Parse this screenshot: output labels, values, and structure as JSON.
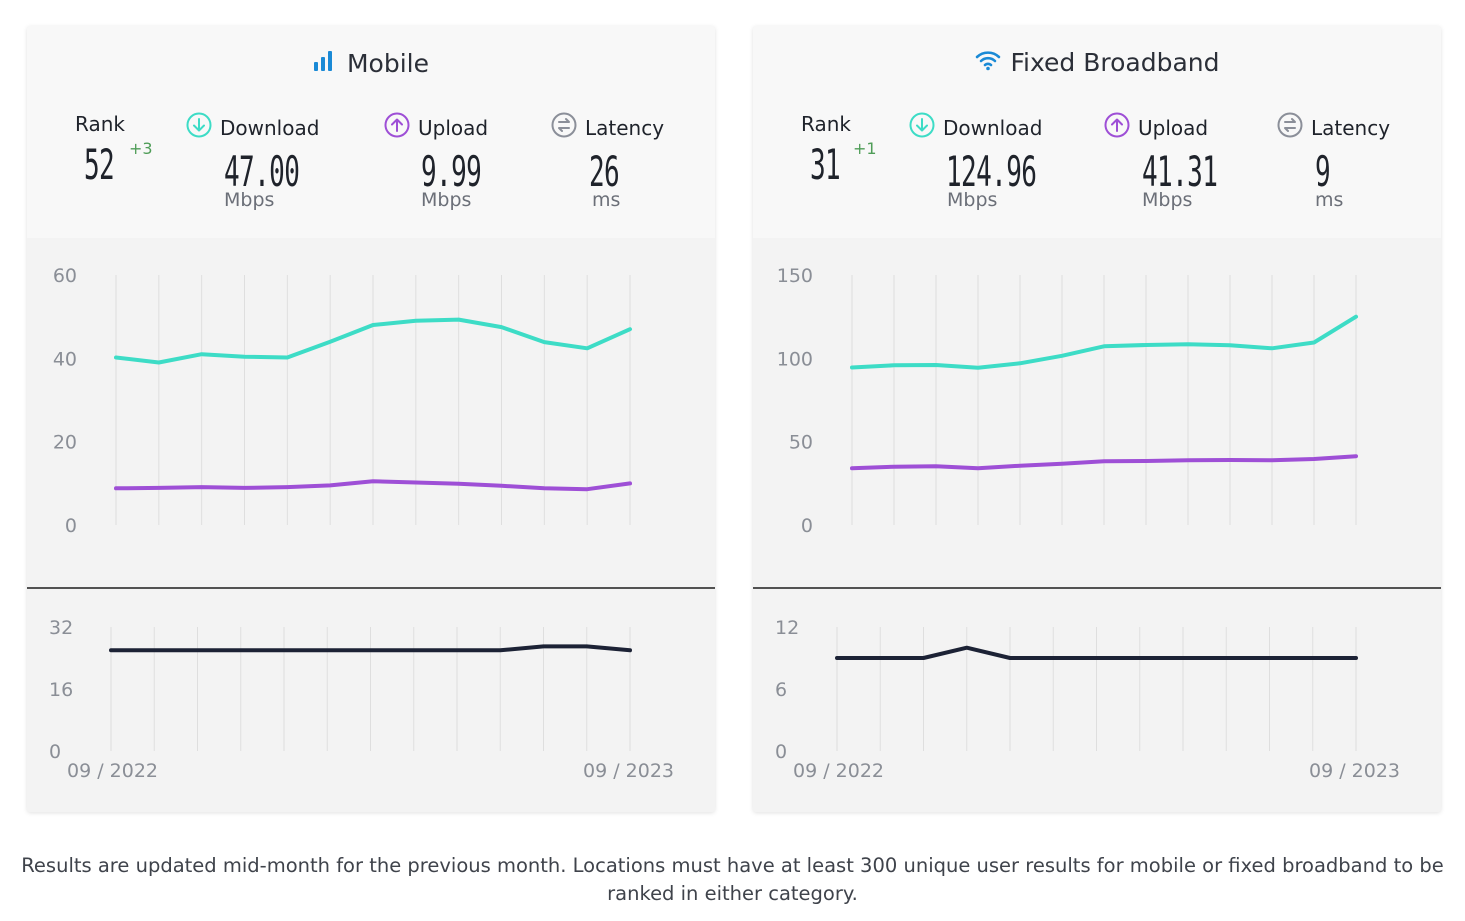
{
  "colors": {
    "download": "#3ddcc6",
    "upload": "#9e4fd6",
    "latency_icon": "#8b8f99",
    "latency_line": "#1c2235",
    "grid": "#dedede",
    "axis_text": "#8a8e96",
    "brand_blue": "#1a8ad6"
  },
  "cards": [
    {
      "title": "Mobile",
      "title_icon": "signal-bars-icon",
      "rank_label": "Rank",
      "rank": "52",
      "rank_change": "+3",
      "download_label": "Download",
      "download": "47.00",
      "download_unit": "Mbps",
      "upload_label": "Upload",
      "upload": "9.99",
      "upload_unit": "Mbps",
      "latency_label": "Latency",
      "latency": "26",
      "latency_unit": "ms",
      "x_start": "09 / 2022",
      "x_end": "09 / 2023"
    },
    {
      "title": "Fixed Broadband",
      "title_icon": "wifi-icon",
      "rank_label": "Rank",
      "rank": "31",
      "rank_change": "+1",
      "download_label": "Download",
      "download": "124.96",
      "download_unit": "Mbps",
      "upload_label": "Upload",
      "upload": "41.31",
      "upload_unit": "Mbps",
      "latency_label": "Latency",
      "latency": "9",
      "latency_unit": "ms",
      "x_start": "09 / 2022",
      "x_end": "09 / 2023"
    }
  ],
  "footnote": "Results are updated mid-month for the previous month. Locations must have at least 300 unique user results for mobile or fixed broadband to be ranked in either category.",
  "chart_data": [
    {
      "type": "line",
      "x": [
        "09/2022",
        "10/2022",
        "11/2022",
        "12/2022",
        "01/2023",
        "02/2023",
        "03/2023",
        "04/2023",
        "05/2023",
        "06/2023",
        "07/2023",
        "08/2023",
        "09/2023"
      ],
      "speed_ticks": [
        "60",
        "40",
        "20",
        "0"
      ],
      "speed_ylim": [
        0,
        60
      ],
      "series": [
        {
          "color": "#3ddcc6",
          "values": [
            40.2,
            39.0,
            41.0,
            40.4,
            40.2,
            44.0,
            48.0,
            49.0,
            49.3,
            47.5,
            43.9,
            42.4,
            47.0
          ]
        },
        {
          "color": "#9e4fd6",
          "values": [
            8.8,
            8.9,
            9.1,
            8.9,
            9.1,
            9.5,
            10.5,
            10.2,
            9.9,
            9.4,
            8.8,
            8.6,
            9.99
          ]
        }
      ],
      "latency_ticks": [
        "32",
        "16",
        "0"
      ],
      "latency_ylim": [
        0,
        32
      ],
      "latency_series": {
        "color": "#1c2235",
        "values": [
          26,
          26,
          26,
          26,
          26,
          26,
          26,
          26,
          26,
          26,
          27,
          27,
          26
        ]
      }
    },
    {
      "type": "line",
      "x": [
        "09/2022",
        "10/2022",
        "11/2022",
        "12/2022",
        "01/2023",
        "02/2023",
        "03/2023",
        "04/2023",
        "05/2023",
        "06/2023",
        "07/2023",
        "08/2023",
        "09/2023"
      ],
      "speed_ticks": [
        "150",
        "100",
        "50",
        "0"
      ],
      "speed_ylim": [
        0,
        150
      ],
      "series": [
        {
          "color": "#3ddcc6",
          "values": [
            94.5,
            95.8,
            96.0,
            94.3,
            97.0,
            101.5,
            107.2,
            108.0,
            108.5,
            107.8,
            106.0,
            109.5,
            124.96
          ]
        },
        {
          "color": "#9e4fd6",
          "values": [
            34.0,
            35.0,
            35.2,
            34.0,
            35.6,
            36.8,
            38.2,
            38.4,
            38.8,
            39.0,
            38.8,
            39.6,
            41.31
          ]
        }
      ],
      "latency_ticks": [
        "12",
        "6",
        "0"
      ],
      "latency_ylim": [
        0,
        12
      ],
      "latency_series": {
        "color": "#1c2235",
        "values": [
          9,
          9,
          9,
          10,
          9,
          9,
          9,
          9,
          9,
          9,
          9,
          9,
          9
        ]
      }
    }
  ]
}
